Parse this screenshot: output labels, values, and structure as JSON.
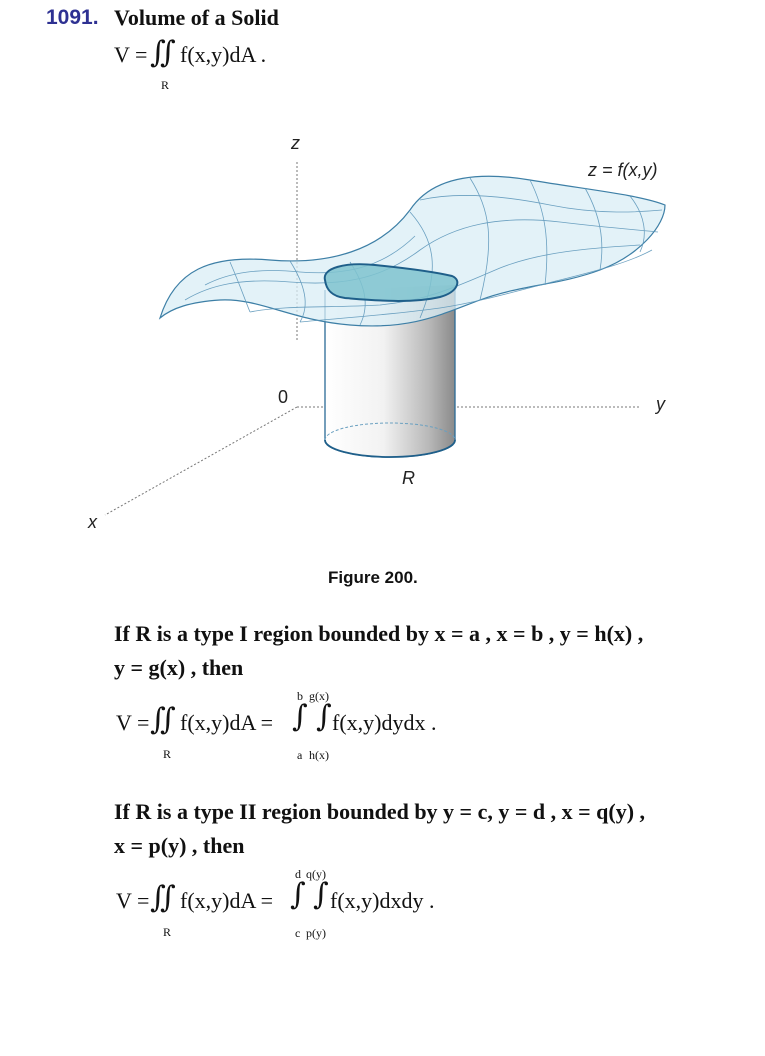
{
  "header": {
    "number": "1091.",
    "title": "Volume of a Solid"
  },
  "formula1": {
    "lhs": "V = ",
    "integrand": "f(x,y)dA .",
    "region": "R"
  },
  "figure": {
    "axis_z": "z",
    "axis_y": "y",
    "axis_x": "x",
    "origin": "0",
    "surface_label": "z = f(x,y)",
    "region_label": "R",
    "caption": "Figure 200."
  },
  "type1": {
    "line1": "If R is a type I region bounded by  x = a ,  x = b ,  y = h(x) ,",
    "line2": "y = g(x) , then",
    "lhs": "V = ",
    "mid": "f(x,y)dA = ",
    "region": "R",
    "outer_upper": "b",
    "outer_lower": "a",
    "inner_upper": "g(x)",
    "inner_lower": "h(x)",
    "integrand": "f(x,y)dydx ."
  },
  "type2": {
    "line1": "If R is a type II region bounded by  y = c,  y = d ,  x = q(y) ,",
    "line2": "x = p(y) , then",
    "lhs": "V = ",
    "mid": "f(x,y)dA = ",
    "region": "R",
    "outer_upper": "d",
    "outer_lower": "c",
    "inner_upper": "q(y)",
    "inner_lower": "p(y)",
    "integrand": "f(x,y)dxdy ."
  }
}
